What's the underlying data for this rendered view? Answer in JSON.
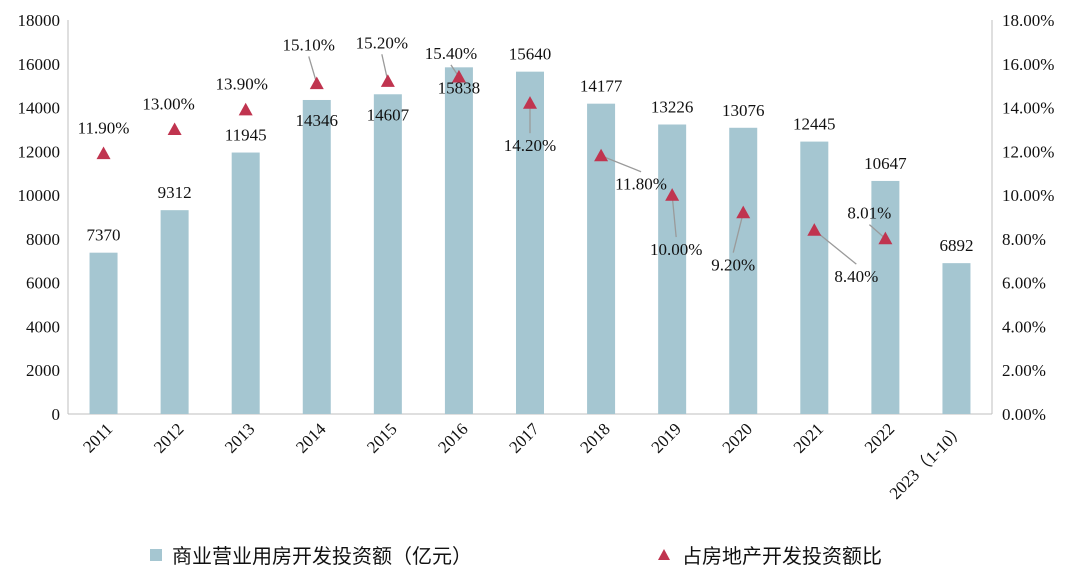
{
  "chart_data": {
    "type": "bar",
    "categories": [
      "2011",
      "2012",
      "2013",
      "2014",
      "2015",
      "2016",
      "2017",
      "2018",
      "2019",
      "2020",
      "2021",
      "2022",
      "2023（1-10）"
    ],
    "series": [
      {
        "name": "商业营业用房开发投资额（亿元）",
        "type": "bar",
        "axis": "left",
        "color": "#a5c6d1",
        "values": [
          7370,
          9312,
          11945,
          14346,
          14607,
          15838,
          15640,
          14177,
          13226,
          13076,
          12445,
          10647,
          6892
        ],
        "labels": [
          "7370",
          "9312",
          "11945",
          "14346",
          "14607",
          "15838",
          "15640",
          "14177",
          "13226",
          "13076",
          "12445",
          "10647",
          "6892"
        ]
      },
      {
        "name": "占房地产开发投资额比",
        "type": "scatter",
        "marker": "triangle",
        "axis": "right",
        "color": "#c0344f",
        "values": [
          11.9,
          13.0,
          13.9,
          15.1,
          15.2,
          15.4,
          14.2,
          11.8,
          10.0,
          9.2,
          8.4,
          8.01,
          null
        ],
        "labels": [
          "11.90%",
          "13.00%",
          "13.90%",
          "15.10%",
          "15.20%",
          "15.40%",
          "14.20%",
          "11.80%",
          "10.00%",
          "9.20%",
          "8.40%",
          "8.01%",
          null
        ]
      }
    ],
    "y_left": {
      "min": 0,
      "max": 18000,
      "ticks": [
        "0",
        "2000",
        "4000",
        "6000",
        "8000",
        "10000",
        "12000",
        "14000",
        "16000",
        "18000"
      ]
    },
    "y_right": {
      "min": 0,
      "max": 18,
      "ticks": [
        "0.00%",
        "2.00%",
        "4.00%",
        "6.00%",
        "8.00%",
        "10.00%",
        "12.00%",
        "14.00%",
        "16.00%",
        "18.00%"
      ]
    },
    "legend": {
      "position": "bottom"
    },
    "grid": false
  }
}
